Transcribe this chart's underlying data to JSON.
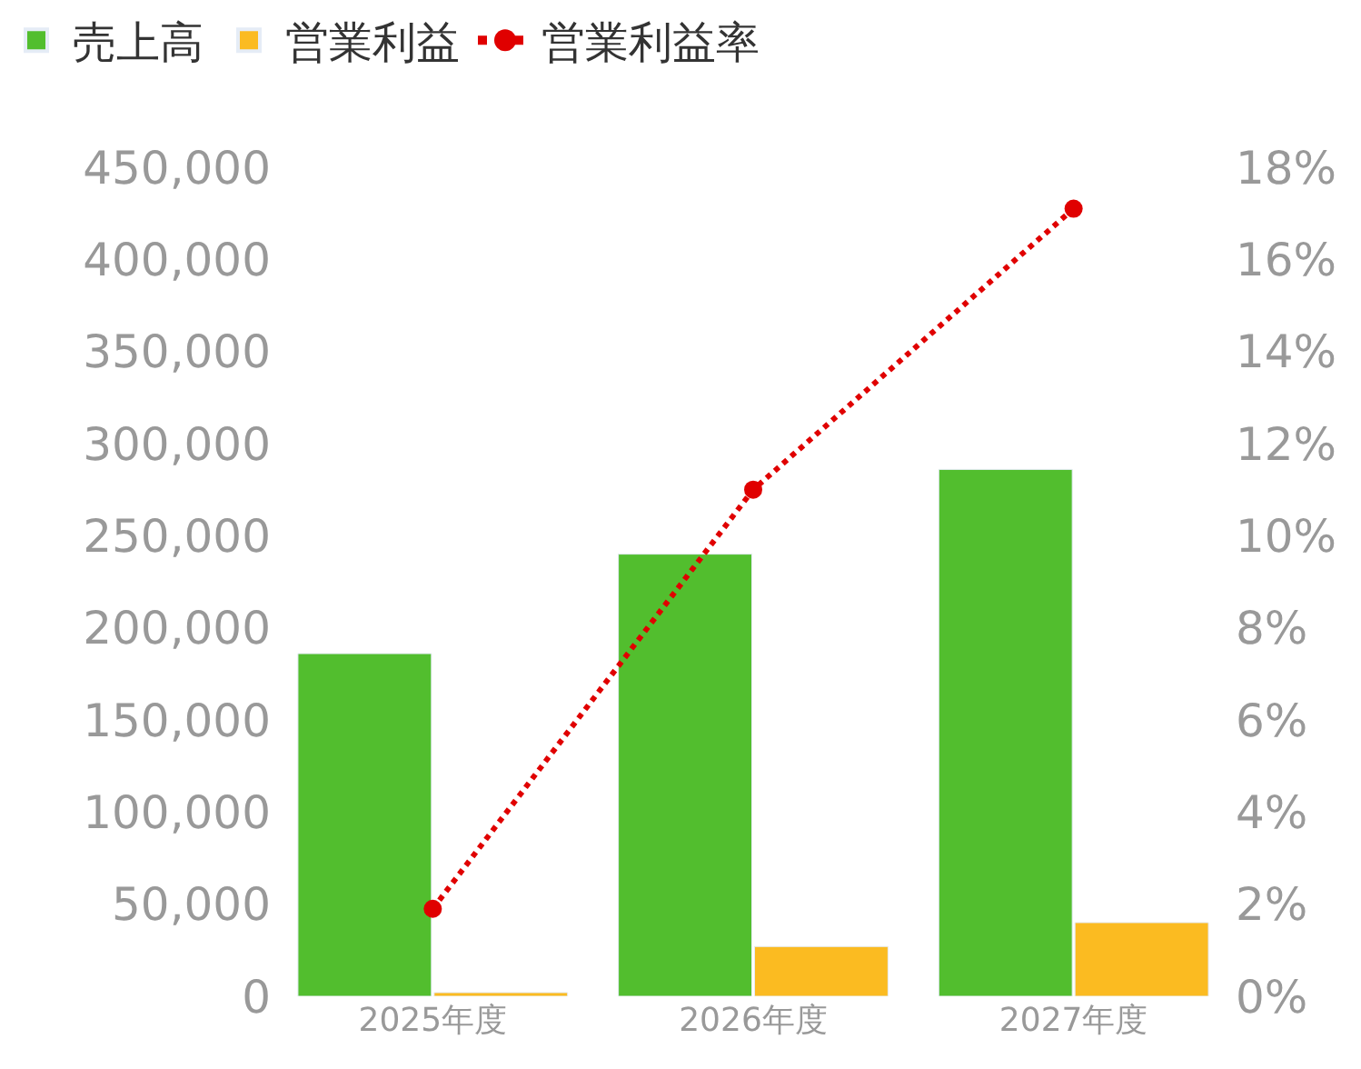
{
  "chart_data": {
    "type": "bar",
    "categories": [
      "2025年度",
      "2026年度",
      "2027年度"
    ],
    "series": [
      {
        "name": "売上高",
        "color": "#52be2e",
        "values": [
          186000,
          240000,
          286000
        ]
      },
      {
        "name": "営業利益",
        "color": "#fbbb21",
        "values": [
          2000,
          27000,
          40000
        ]
      },
      {
        "name": "営業利益率",
        "type": "line",
        "axis": "y2",
        "color": "#e00000",
        "values": [
          1.9,
          11.0,
          17.1
        ]
      }
    ],
    "ylim": [
      0,
      450000
    ],
    "yticks": [
      {
        "value": 0,
        "label": "0"
      },
      {
        "value": 50000,
        "label": "50,000"
      },
      {
        "value": 100000,
        "label": "100,000"
      },
      {
        "value": 150000,
        "label": "150,000"
      },
      {
        "value": 200000,
        "label": "200,000"
      },
      {
        "value": 250000,
        "label": "250,000"
      },
      {
        "value": 300000,
        "label": "300,000"
      },
      {
        "value": 350000,
        "label": "350,000"
      },
      {
        "value": 400000,
        "label": "400,000"
      },
      {
        "value": 450000,
        "label": "450,000"
      }
    ],
    "y2lim": [
      0,
      18
    ],
    "y2ticks": [
      {
        "value": 0,
        "label": "0%"
      },
      {
        "value": 2,
        "label": "2%"
      },
      {
        "value": 4,
        "label": "4%"
      },
      {
        "value": 6,
        "label": "6%"
      },
      {
        "value": 8,
        "label": "8%"
      },
      {
        "value": 10,
        "label": "10%"
      },
      {
        "value": 12,
        "label": "12%"
      },
      {
        "value": 14,
        "label": "14%"
      },
      {
        "value": 16,
        "label": "16%"
      },
      {
        "value": 18,
        "label": "18%"
      }
    ],
    "legend": "top left",
    "marker": "circle",
    "line_style": "dotted"
  }
}
